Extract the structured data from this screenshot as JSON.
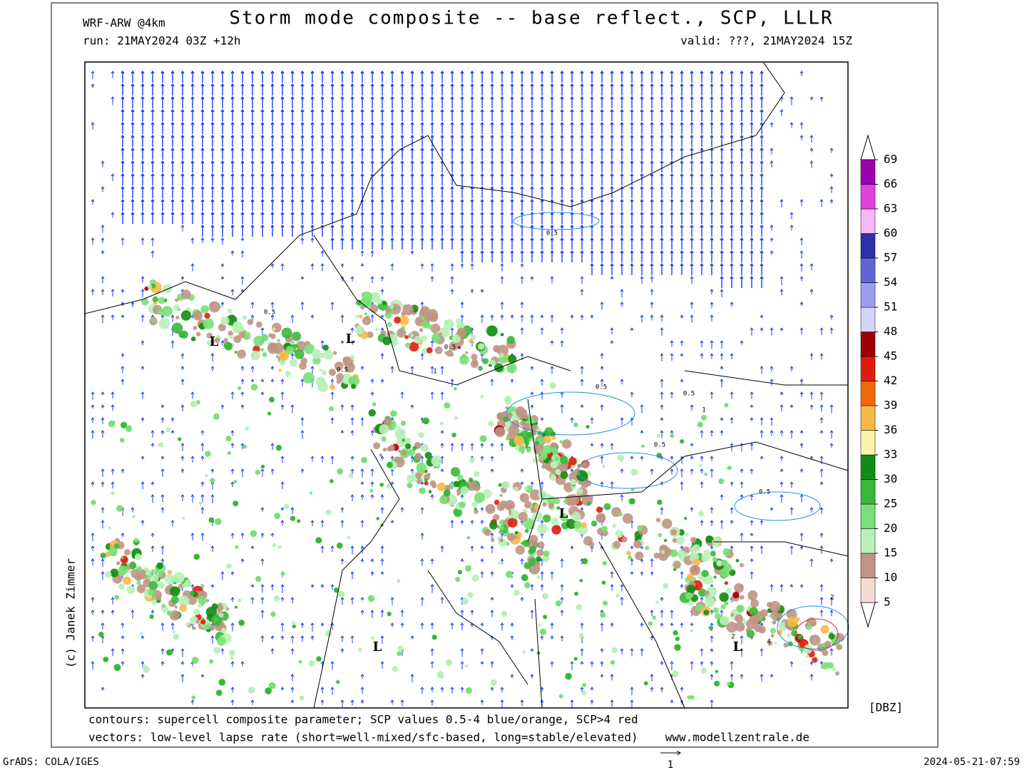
{
  "header": {
    "model": "WRF-ARW @4km",
    "title": "Storm mode composite -- base reflect., SCP, LLLR",
    "run": "run: 21MAY2024 03Z +12h",
    "valid": "valid: ???, 21MAY2024 15Z"
  },
  "colorbar": {
    "unit": "[DBZ]",
    "levels": [
      5,
      10,
      15,
      20,
      25,
      30,
      33,
      36,
      39,
      42,
      45,
      48,
      51,
      54,
      57,
      60,
      63,
      66,
      69
    ],
    "colors": [
      "#f2dcd4",
      "#c09484",
      "#b8f0b8",
      "#78e078",
      "#38b838",
      "#108c10",
      "#f8f4a8",
      "#f8b848",
      "#f06808",
      "#e01c10",
      "#a00000",
      "#d4d4f8",
      "#9c9cf0",
      "#6464d8",
      "#3030a8",
      "#f4b8f4",
      "#e040e0",
      "#9c00b0"
    ]
  },
  "map": {
    "lows": [
      "L",
      "L",
      "L",
      "L",
      "L"
    ],
    "contour_labels": [
      "0.5",
      "0.5",
      "0.5",
      "0.5",
      "0.5",
      "0.5",
      "0.5",
      "0.5",
      "1",
      "1",
      "2",
      "4",
      "2"
    ]
  },
  "footer": {
    "contours_note": "contours: supercell composite parameter; SCP values 0.5-4 blue/orange, SCP>4 red",
    "vectors_note": "vectors: low-level lapse rate (short=well-mixed/sfc-based, long=stable/elevated)",
    "website": "www.modellzentrale.de",
    "credit": "(c) Janek Zimmer",
    "software": "GrADS: COLA/IGES",
    "timestamp": "2024-05-21-07:59",
    "vector_reference": "1"
  }
}
